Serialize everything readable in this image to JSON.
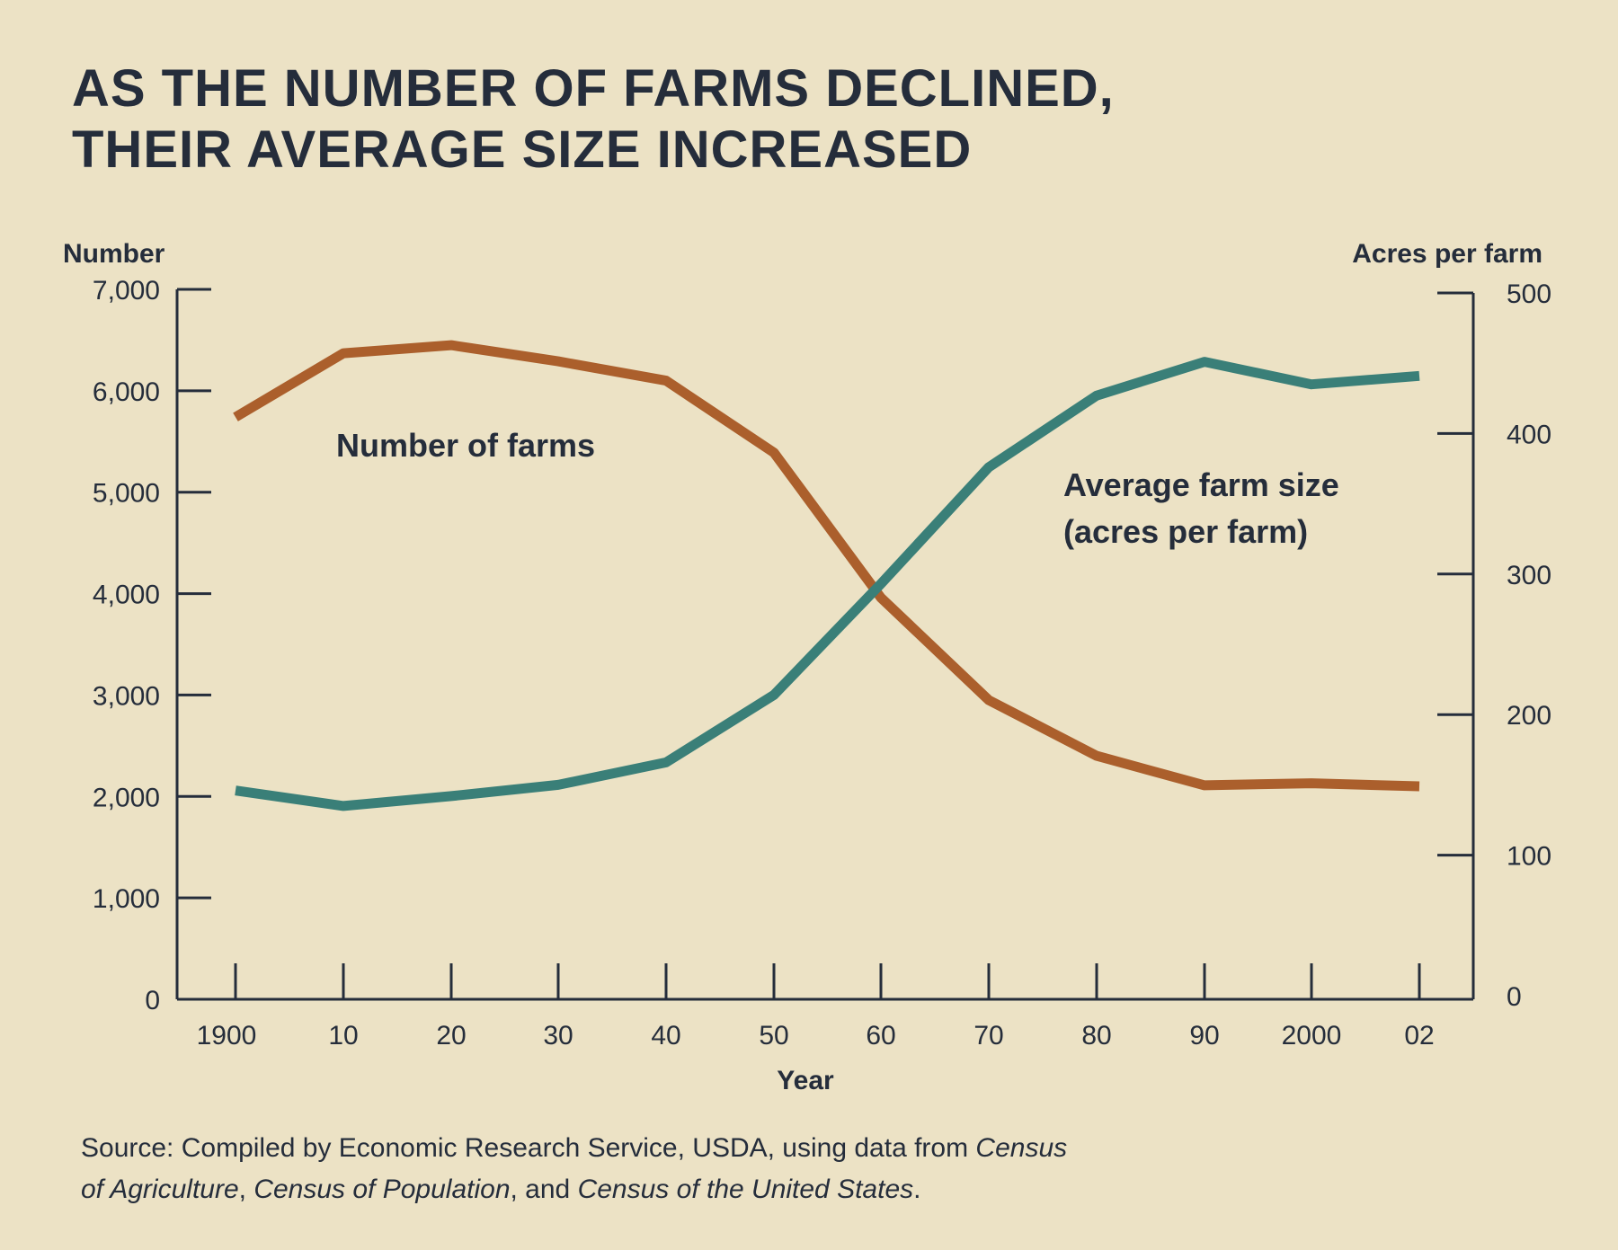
{
  "title_lines": [
    "AS THE NUMBER OF FARMS DECLINED,",
    "THEIR AVERAGE SIZE INCREASED"
  ],
  "source": {
    "line1": [
      {
        "text": "Source: Compiled by Economic Research Service, USDA, using data from ",
        "italic": false
      },
      {
        "text": "Census",
        "italic": true
      }
    ],
    "line2": [
      {
        "text": "of Agriculture",
        "italic": true
      },
      {
        "text": ", ",
        "italic": false
      },
      {
        "text": "Census of Population",
        "italic": true
      },
      {
        "text": ", and ",
        "italic": false
      },
      {
        "text": "Census of the United States",
        "italic": true
      },
      {
        "text": ".",
        "italic": false
      }
    ]
  },
  "colors": {
    "background": "#ece2c5",
    "text": "#252d3b",
    "number_of_farms": "#ab5f2c",
    "average_farm_size": "#3a7f78"
  },
  "chart_data": {
    "type": "line",
    "title": "AS THE NUMBER OF FARMS DECLINED, THEIR AVERAGE SIZE INCREASED",
    "xlabel": "Year",
    "ylabel_left": "Number",
    "ylabel_right": "Acres per farm",
    "x": [
      1900,
      1910,
      1920,
      1930,
      1940,
      1950,
      1960,
      1970,
      1980,
      1990,
      2000,
      2002
    ],
    "x_tick_labels": [
      "1900",
      "10",
      "20",
      "30",
      "40",
      "50",
      "60",
      "70",
      "80",
      "90",
      "2000",
      "02"
    ],
    "y_left_ticks": [
      "0",
      "1,000",
      "2,000",
      "3,000",
      "4,000",
      "5,000",
      "6,000",
      "7,000"
    ],
    "y_left_tick_values": [
      0,
      1000,
      2000,
      3000,
      4000,
      5000,
      6000,
      7000
    ],
    "y_right_ticks": [
      "0",
      "100",
      "200",
      "300",
      "400",
      "500"
    ],
    "y_right_tick_values": [
      0,
      100,
      200,
      300,
      400,
      500
    ],
    "ylim_left": [
      0,
      7000
    ],
    "ylim_right": [
      0,
      500
    ],
    "grid": false,
    "series": [
      {
        "name": "Number of farms",
        "axis": "left",
        "values": [
          5740,
          6370,
          6450,
          6290,
          6100,
          5390,
          3960,
          2950,
          2400,
          2110,
          2130,
          2100
        ]
      },
      {
        "name": "Average farm size\n(acres per farm)",
        "name_lines": [
          "Average farm size",
          "(acres per farm)"
        ],
        "axis": "right",
        "values": [
          146,
          135,
          142,
          150,
          166,
          214,
          293,
          376,
          427,
          451,
          435,
          441
        ]
      }
    ]
  }
}
